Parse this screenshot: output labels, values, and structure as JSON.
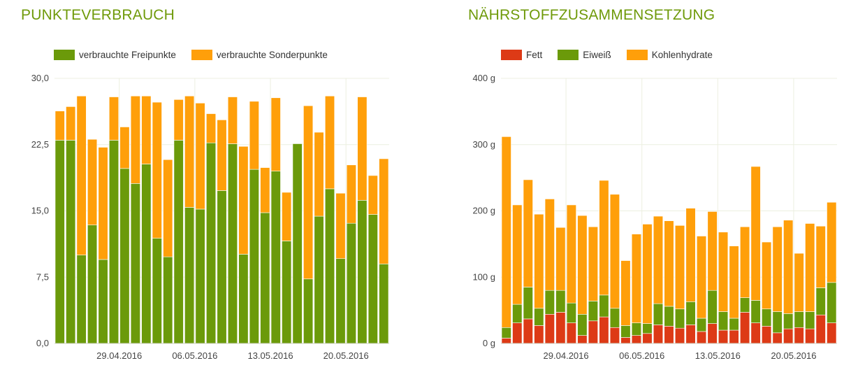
{
  "colors": {
    "title": "#6f9a0a",
    "freipunkte": "#6b9a0a",
    "sonderpunkte": "#ff9f0a",
    "fett": "#dd3a16",
    "eiweiss": "#6b9a0a",
    "kohlenhydrate": "#ff9f0a",
    "grid": "#ecefe0"
  },
  "chart_data": [
    {
      "type": "bar",
      "stacked": true,
      "title": "PUNKTEVERBRAUCH",
      "ylim": [
        0,
        30
      ],
      "yticks": [
        "0,0",
        "7,5",
        "15,0",
        "22,5",
        "30,0"
      ],
      "ytick_values": [
        0,
        7.5,
        15,
        22.5,
        30
      ],
      "xtick_labels": [
        "29.04.2016",
        "06.05.2016",
        "13.05.2016",
        "20.05.2016"
      ],
      "xtick_index": [
        5,
        12,
        19,
        26
      ],
      "grid": true,
      "legend_position": "top-left",
      "series": [
        {
          "name": "verbrauchte Freipunkte",
          "color": "#6b9a0a",
          "values": [
            23,
            23,
            10,
            13.4,
            9.5,
            23,
            19.8,
            18.1,
            20.3,
            11.9,
            9.8,
            23,
            15.4,
            15.2,
            22.7,
            17.3,
            22.6,
            10.1,
            19.7,
            14.8,
            19.5,
            11.6,
            22.6,
            7.3,
            14.4,
            17.5,
            9.6,
            13.6,
            16.2,
            14.6,
            9
          ]
        },
        {
          "name": "verbrauchte Sonderpunkte",
          "color": "#ff9f0a",
          "values": [
            3.3,
            3.8,
            18,
            9.7,
            12.7,
            4.9,
            4.7,
            9.9,
            7.7,
            15.4,
            11,
            4.6,
            12.6,
            12,
            3.3,
            8,
            5.3,
            12.2,
            7.7,
            5.1,
            8.3,
            5.5,
            0,
            19.6,
            9.5,
            10.5,
            7.4,
            6.6,
            11.7,
            4.4,
            11.9
          ]
        }
      ]
    },
    {
      "type": "bar",
      "stacked": true,
      "title": "NÄHRSTOFFZUSAMMENSETZUNG",
      "ylim": [
        0,
        400
      ],
      "yticks": [
        "0 g",
        "100 g",
        "200 g",
        "300 g",
        "400 g"
      ],
      "ytick_values": [
        0,
        100,
        200,
        300,
        400
      ],
      "xtick_labels": [
        "29.04.2016",
        "06.05.2016",
        "13.05.2016",
        "20.05.2016"
      ],
      "xtick_index": [
        5,
        12,
        19,
        26
      ],
      "grid": true,
      "legend_position": "top-left",
      "series": [
        {
          "name": "Fett",
          "color": "#dd3a16",
          "values": [
            8,
            31,
            37,
            27,
            44,
            47,
            31,
            12,
            34,
            40,
            24,
            9,
            12,
            15,
            28,
            26,
            23,
            28,
            18,
            30,
            20,
            20,
            47,
            31,
            26,
            16,
            22,
            24,
            22,
            43,
            31
          ]
        },
        {
          "name": "Eiweiß",
          "color": "#6b9a0a",
          "values": [
            16,
            28,
            48,
            26,
            36,
            33,
            30,
            32,
            30,
            33,
            29,
            18,
            19,
            15,
            32,
            30,
            29,
            35,
            20,
            50,
            28,
            18,
            22,
            34,
            26,
            32,
            23,
            24,
            26,
            41,
            61
          ]
        },
        {
          "name": "Kohlenhydrate",
          "color": "#ff9f0a",
          "values": [
            288,
            150,
            162,
            142,
            138,
            95,
            148,
            149,
            112,
            173,
            172,
            98,
            134,
            150,
            132,
            129,
            126,
            141,
            124,
            119,
            120,
            109,
            107,
            202,
            101,
            128,
            141,
            88,
            133,
            93,
            121
          ]
        }
      ]
    }
  ]
}
